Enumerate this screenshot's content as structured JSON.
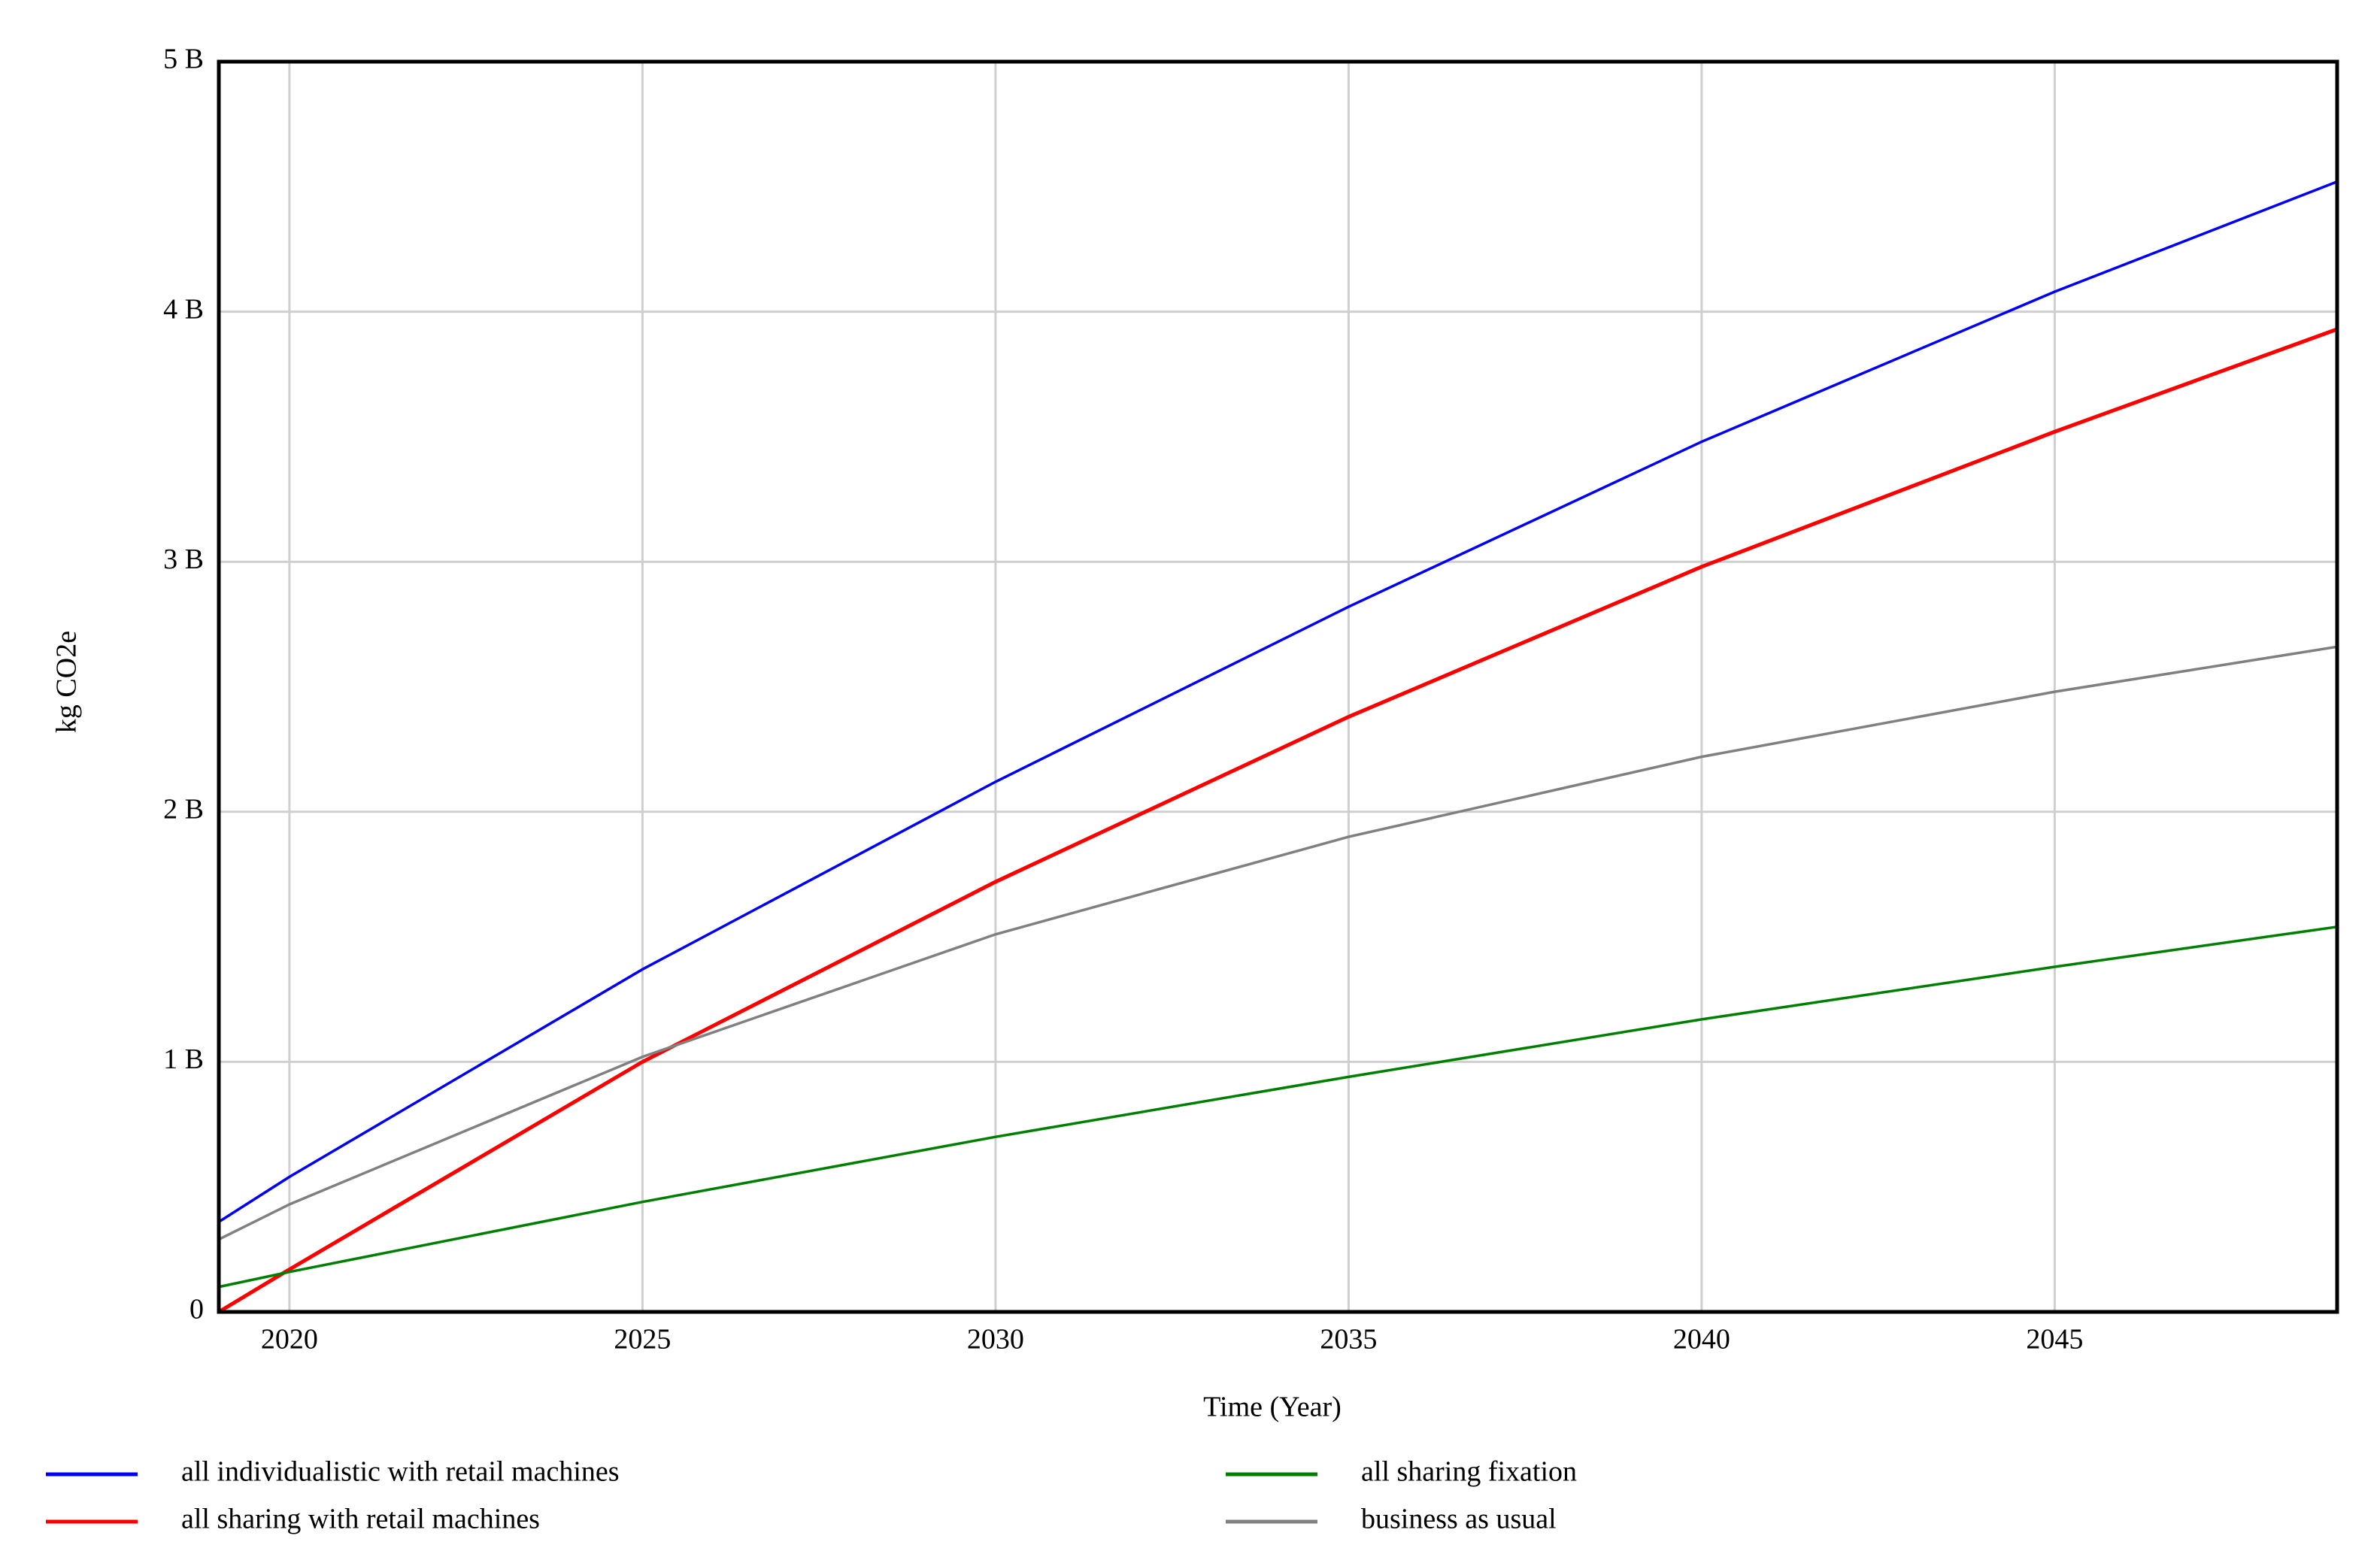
{
  "chart_data": {
    "type": "line",
    "x_label": "Time (Year)",
    "y_label": "kg CO2e",
    "x": [
      2019,
      2020,
      2025,
      2030,
      2035,
      2040,
      2045,
      2049
    ],
    "series": [
      {
        "name": "all individualistic with retail machines",
        "color": "#0000ff",
        "values": [
          360000000,
          540000000,
          1370000000,
          2120000000,
          2820000000,
          3480000000,
          4080000000,
          4520000000
        ]
      },
      {
        "name": "all sharing with retail machines",
        "color": "#ff0000",
        "values": [
          0,
          170000000,
          1000000000,
          1720000000,
          2380000000,
          2980000000,
          3520000000,
          3930000000
        ]
      },
      {
        "name": "all sharing fixation",
        "color": "#008000",
        "values": [
          100000000,
          160000000,
          440000000,
          700000000,
          940000000,
          1170000000,
          1380000000,
          1540000000
        ]
      },
      {
        "name": "business as usual",
        "color": "#808080",
        "values": [
          290000000,
          430000000,
          1020000000,
          1510000000,
          1900000000,
          2220000000,
          2480000000,
          2660000000
        ]
      }
    ],
    "xlim": [
      2019,
      2049
    ],
    "xticks": [
      2020,
      2025,
      2030,
      2035,
      2040,
      2045
    ],
    "ylim": [
      0,
      5000000000
    ],
    "yticks": [
      0,
      {
        "value": 1000000000,
        "label": "1 B"
      },
      {
        "value": 2000000000,
        "label": "2 B"
      },
      {
        "value": 3000000000,
        "label": "3 B"
      },
      {
        "value": 4000000000,
        "label": "4 B"
      },
      {
        "value": 5000000000,
        "label": "5 B"
      }
    ],
    "grid": true
  }
}
